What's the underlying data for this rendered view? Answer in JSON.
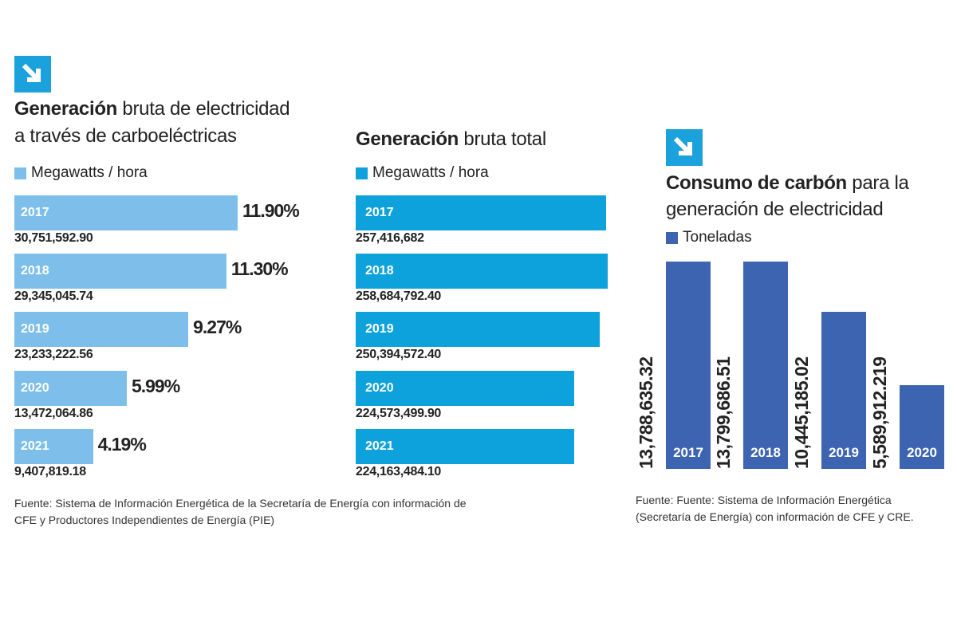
{
  "colors": {
    "light_blue": "#7dbfea",
    "cyan": "#0ea2dc",
    "dark_blue": "#3d64b0",
    "icon": "#1ba1dc"
  },
  "chart_data": [
    {
      "type": "bar",
      "orientation": "horizontal",
      "title_bold": "Generación",
      "title_rest": " bruta de electricidad",
      "title_line2": "a través de carboeléctricas",
      "legend": "Megawatts / hora",
      "categories": [
        "2017",
        "2018",
        "2019",
        "2020",
        "2021"
      ],
      "values": [
        30751592.9,
        29345045.74,
        23233222.56,
        13472064.86,
        9407819.18
      ],
      "value_labels": [
        "30,751,592.90",
        "29,345,045.74",
        "23,233,222.56",
        "13,472,064.86",
        "9,407,819.18"
      ],
      "percent_labels": [
        "11.90%",
        "11.30%",
        "9.27%",
        "5.99%",
        "4.19%"
      ],
      "percents": [
        11.9,
        11.3,
        9.27,
        5.99,
        4.19
      ],
      "footer": [
        "Fuente: Sistema de Información Energética de la Secretaría de Energía con información de",
        "CFE y Productores Independientes de Energía (PIE)"
      ]
    },
    {
      "type": "bar",
      "orientation": "horizontal",
      "title_bold": "Generación",
      "title_rest": " bruta total",
      "legend": "Megawatts / hora",
      "categories": [
        "2017",
        "2018",
        "2019",
        "2020",
        "2021"
      ],
      "values": [
        257416682,
        258684792.4,
        250394572.4,
        224573499.9,
        224163484.1
      ],
      "value_labels": [
        "257,416,682",
        "258,684,792.40",
        "250,394,572.40",
        "224,573,499.90",
        "224,163,484.10"
      ]
    },
    {
      "type": "bar",
      "orientation": "vertical",
      "title_bold": "Consumo de carbón",
      "title_rest": " para la",
      "title_line2": "generación de electricidad",
      "legend": "Toneladas",
      "categories": [
        "2017",
        "2018",
        "2019",
        "2020"
      ],
      "values": [
        13788635.32,
        13799686.51,
        10445185.02,
        5589912.219
      ],
      "value_labels": [
        "13,788,635.32",
        "13,799,686.51",
        "10,445,185.02",
        "5,589,912.219"
      ],
      "footer": [
        "Fuente: Fuente: Sistema de Información Energética",
        "(Secretaría de Energía) con información de CFE y CRE."
      ]
    }
  ]
}
